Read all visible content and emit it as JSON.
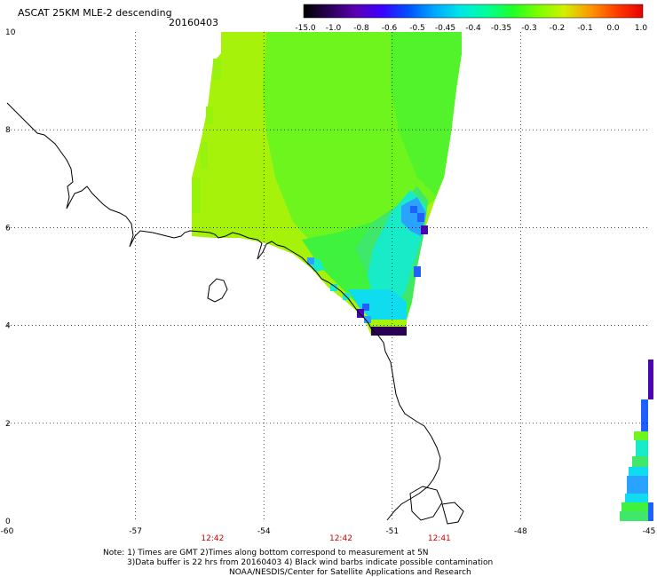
{
  "header": {
    "title": "ASCAT 25KM MLE-2 descending",
    "date": "20160403"
  },
  "colorbar": {
    "labels": [
      "-15.0",
      "-1.0",
      "-0.8",
      "-0.6",
      "-0.5",
      "-0.45",
      "-0.4",
      "-0.35",
      "-0.3",
      "-0.2",
      "-0.1",
      "0.0",
      "1.0"
    ],
    "gradient": [
      "#000000",
      "#2a0055",
      "#5a00b4",
      "#3c00ff",
      "#0050ff",
      "#00a8ff",
      "#00e6e6",
      "#00ff9c",
      "#1eff28",
      "#7dff00",
      "#d2f000",
      "#ff9600",
      "#ff3c00",
      "#e60000"
    ]
  },
  "axes": {
    "x_ticks": [
      {
        "value": -60,
        "label": "-60"
      },
      {
        "value": -57,
        "label": "-57"
      },
      {
        "value": -54,
        "label": "-54"
      },
      {
        "value": -51,
        "label": "-51"
      },
      {
        "value": -48,
        "label": "-48"
      },
      {
        "value": -45,
        "label": "-45"
      }
    ],
    "y_ticks": [
      {
        "value": 0,
        "label": "0"
      },
      {
        "value": 2,
        "label": "2"
      },
      {
        "value": 4,
        "label": "4"
      },
      {
        "value": 6,
        "label": "6"
      },
      {
        "value": 8,
        "label": "8"
      },
      {
        "value": 10,
        "label": "10"
      }
    ],
    "lon_range": [
      -60,
      -45
    ],
    "lat_range": [
      0,
      10
    ],
    "grid": true
  },
  "pass_times": [
    {
      "label": "12:42",
      "lon": -55.2
    },
    {
      "label": "12:42",
      "lon": -52.2
    },
    {
      "label": "12:41",
      "lon": -49.9
    }
  ],
  "notes": [
    "Note: 1) Times are GMT 2)Times along bottom correspond to measurement at 5N",
    "3)Data buffer is 22 hrs from 20160403 4) Black wind barbs indicate possible contamination",
    "NOAA/NESDIS/Center for Satellite Applications and Research"
  ],
  "colors": {
    "coastline": "#000000",
    "grid": "#000000",
    "time_labels": "#cc0000"
  }
}
